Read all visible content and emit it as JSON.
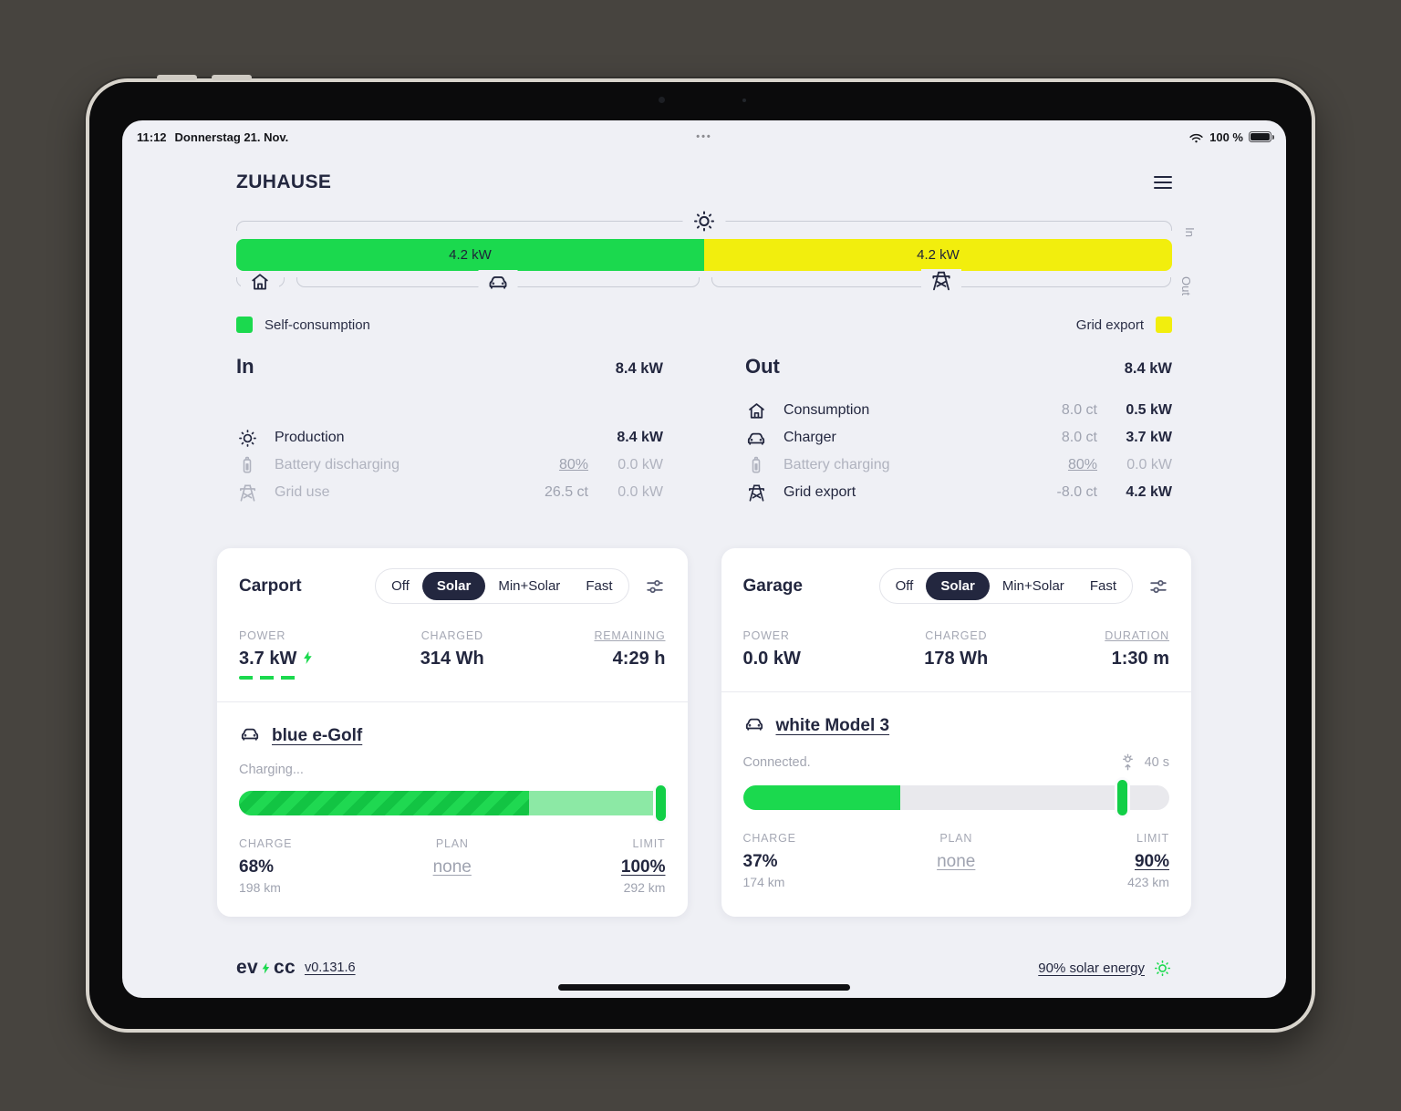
{
  "statusbar": {
    "time": "11:12",
    "date": "Donnerstag 21. Nov.",
    "dots": "•••",
    "battery": "100 %"
  },
  "header": {
    "title": "ZUHAUSE"
  },
  "flow": {
    "in_axis_label": "In",
    "out_axis_label": "Out",
    "legend_self": "Self-consumption",
    "legend_export": "Grid export",
    "green_color": "#1bd94e",
    "yellow_color": "#f2ee0d",
    "segments": [
      {
        "name": "self-consumption",
        "label": "4.2 kW",
        "pct": 50,
        "color": "#1bd94e"
      },
      {
        "name": "grid-export",
        "label": "4.2 kW",
        "pct": 50,
        "color": "#f2ee0d"
      }
    ],
    "brackets": [
      {
        "icon": "house-icon",
        "pct": 6
      },
      {
        "icon": "car-icon",
        "pct": 44
      },
      {
        "icon": "pylon-icon",
        "pct": 50
      }
    ]
  },
  "energy_in": {
    "title": "In",
    "total": "8.4 kW",
    "rows": [
      {
        "icon": "sun-icon",
        "label": "Production",
        "detail": "",
        "value": "8.4 kW",
        "muted": false
      },
      {
        "icon": "battery-icon",
        "label": "Battery discharging",
        "detail": "80%",
        "value": "0.0 kW",
        "muted": true
      },
      {
        "icon": "pylon-icon",
        "label": "Grid use",
        "detail": "26.5 ct",
        "value": "0.0 kW",
        "muted": true
      }
    ]
  },
  "energy_out": {
    "title": "Out",
    "total": "8.4 kW",
    "rows": [
      {
        "icon": "house-icon",
        "label": "Consumption",
        "detail": "8.0 ct",
        "value": "0.5 kW",
        "muted": false
      },
      {
        "icon": "car-icon",
        "label": "Charger",
        "detail": "8.0 ct",
        "value": "3.7 kW",
        "muted": false
      },
      {
        "icon": "battery-icon",
        "label": "Battery charging",
        "detail": "80%",
        "value": "0.0 kW",
        "muted": true
      },
      {
        "icon": "pylon-icon",
        "label": "Grid export",
        "detail": "-8.0 ct",
        "value": "4.2 kW",
        "muted": false
      }
    ]
  },
  "modes": [
    "Off",
    "Solar",
    "Min+Solar",
    "Fast"
  ],
  "carport": {
    "title": "Carport",
    "active_mode": "Solar",
    "stat1_label": "POWER",
    "stat1_value": "3.7 kW",
    "stat2_label": "CHARGED",
    "stat2_value": "314 Wh",
    "stat3_label": "REMAINING",
    "stat3_value": "4:29 h",
    "vehicle": "blue e-Golf",
    "status": "Charging...",
    "charge_pct": 68,
    "marker_pct": 100,
    "b1_label": "CHARGE",
    "b1_value": "68%",
    "b1_sub": "198 km",
    "b2_label": "PLAN",
    "b2_value": "none",
    "b3_label": "LIMIT",
    "b3_value": "100%",
    "b3_sub": "292 km"
  },
  "garage": {
    "title": "Garage",
    "active_mode": "Solar",
    "stat1_label": "POWER",
    "stat1_value": "0.0 kW",
    "stat2_label": "CHARGED",
    "stat2_value": "178 Wh",
    "stat3_label": "DURATION",
    "stat3_value": "1:30 m",
    "vehicle": "white Model 3",
    "status": "Connected.",
    "timer": "40 s",
    "charge_pct": 37,
    "marker_pct": 90,
    "b1_label": "CHARGE",
    "b1_value": "37%",
    "b1_sub": "174 km",
    "b2_label": "PLAN",
    "b2_value": "none",
    "b3_label": "LIMIT",
    "b3_value": "90%",
    "b3_sub": "423 km"
  },
  "footer": {
    "logo_left": "ev",
    "logo_right": "cc",
    "version": "v0.131.6",
    "solar_share": "90% solar energy"
  }
}
